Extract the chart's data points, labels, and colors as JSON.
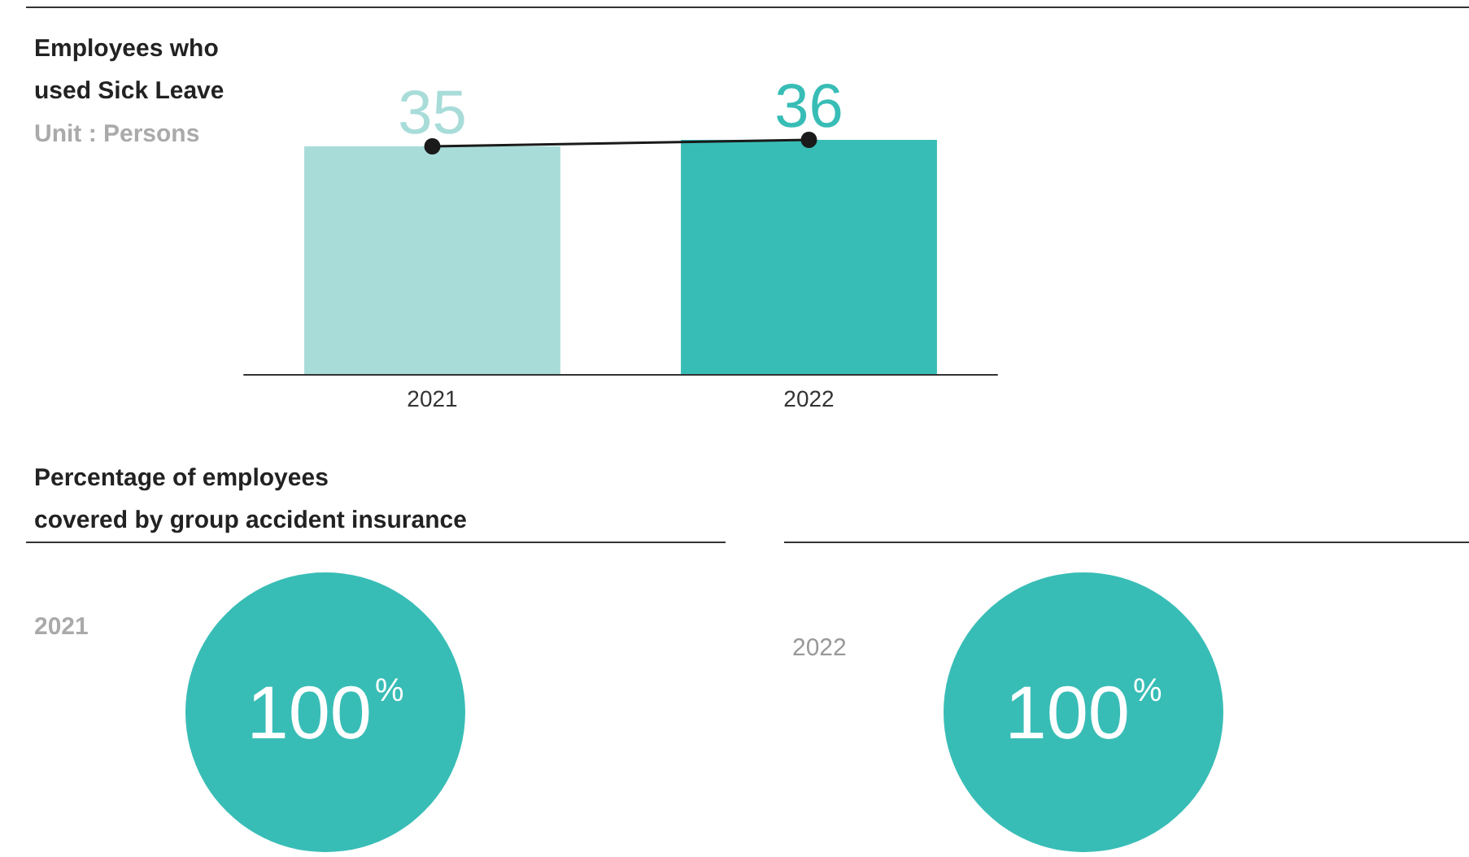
{
  "chart_data": [
    {
      "type": "bar",
      "title": "Employees who\nused Sick Leave",
      "subtitle": "Unit : Persons",
      "categories": [
        "2021",
        "2022"
      ],
      "series": [
        {
          "type": "bar",
          "colors": [
            "#a8dcd9",
            "#38bdb6"
          ],
          "values": [
            35,
            36
          ],
          "value_labels": [
            "35",
            "36"
          ]
        },
        {
          "type": "line",
          "color": "#1a1a1a",
          "marker": "circle",
          "values": [
            35,
            36
          ]
        }
      ]
    },
    {
      "type": "pie",
      "title": "Percentage of employees\ncovered by group accident insurance",
      "subtitle": "2021",
      "categories": [
        null
      ],
      "values": [
        100
      ],
      "colors": [
        "#38bdb6"
      ],
      "value_labels": [
        "100%"
      ]
    },
    {
      "type": "pie",
      "subtitle": "2022",
      "categories": [
        null
      ],
      "values": [
        100
      ],
      "colors": [
        "#38bdb6"
      ],
      "value_labels": [
        "100%"
      ]
    }
  ]
}
